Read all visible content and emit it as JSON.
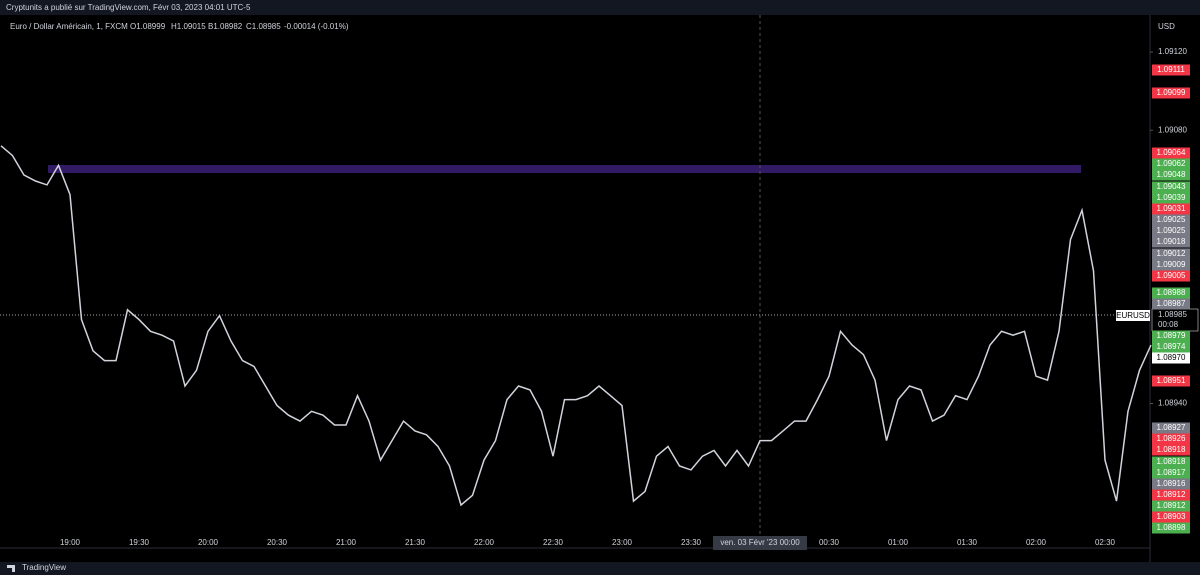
{
  "header": {
    "publisher": "Cryptunits a publié sur TradingView.com, Févr 03, 2023 04:01 UTC-5",
    "brand": "TradingView"
  },
  "chart_data": {
    "type": "line",
    "title": "Euro / Dollar Américain, 1, FXCM",
    "ohlc": [
      "O1.08999",
      "H1.09015",
      "B1.08982",
      "C1.08985",
      "-0.00014 (-0.01%)"
    ],
    "currency": "USD",
    "symbol": "EURUSD",
    "last_price": "1.08985",
    "countdown": "00:08",
    "crosshair_time": "ven. 03 Févr '23 00:00",
    "color": "#d1d4dc",
    "grid": false,
    "ylim": [
      1.08866,
      1.09139
    ],
    "yticks": [
      {
        "value": 1.0912,
        "label": "1.09120"
      },
      {
        "value": 1.0908,
        "label": "1.09080"
      },
      {
        "value": 1.0894,
        "label": "1.08940"
      }
    ],
    "categories": [
      null,
      null,
      null,
      null,
      null,
      null,
      "19:00",
      null,
      null,
      null,
      null,
      null,
      "19:30",
      null,
      null,
      null,
      null,
      null,
      "20:00",
      null,
      null,
      null,
      null,
      null,
      "20:30",
      null,
      null,
      null,
      null,
      null,
      "21:00",
      null,
      null,
      null,
      null,
      null,
      "21:30",
      null,
      null,
      null,
      null,
      null,
      "22:00",
      null,
      null,
      null,
      null,
      null,
      "22:30",
      null,
      null,
      null,
      null,
      null,
      "23:00",
      null,
      null,
      null,
      null,
      null,
      "23:30",
      null,
      null,
      null,
      null,
      null,
      null,
      null,
      null,
      null,
      null,
      null,
      "00:30",
      null,
      null,
      null,
      null,
      null,
      "01:00",
      null,
      null,
      null,
      null,
      null,
      "01:30",
      null,
      null,
      null,
      null,
      null,
      "02:00",
      null,
      null,
      null,
      null,
      null,
      "02:30",
      null,
      null,
      null,
      null
    ],
    "values": [
      1.09072,
      1.09067,
      1.09057,
      1.09054,
      1.09052,
      1.09062,
      1.09047,
      1.08983,
      1.08967,
      1.08962,
      1.08962,
      1.08988,
      1.08983,
      1.08977,
      1.08975,
      1.08972,
      1.08949,
      1.08957,
      1.08977,
      1.08985,
      1.08972,
      1.08962,
      1.08959,
      1.08949,
      1.08939,
      1.08934,
      1.08931,
      1.08936,
      1.08934,
      1.08929,
      1.08929,
      1.08944,
      1.08931,
      1.08911,
      1.08921,
      1.08931,
      1.08926,
      1.08924,
      1.08918,
      1.08908,
      1.08888,
      1.08893,
      1.08911,
      1.08921,
      1.08942,
      1.08949,
      1.08947,
      1.08936,
      1.08913,
      1.08942,
      1.08942,
      1.08944,
      1.08949,
      1.08944,
      1.08939,
      1.0889,
      1.08895,
      1.08913,
      1.08918,
      1.08908,
      1.08906,
      1.08913,
      1.08916,
      1.08908,
      1.08916,
      1.08908,
      1.08921,
      1.08921,
      1.08926,
      1.08931,
      1.08931,
      1.08942,
      1.08954,
      1.08977,
      1.0897,
      1.08965,
      1.08952,
      1.08921,
      1.08942,
      1.08949,
      1.08947,
      1.08931,
      1.08934,
      1.08944,
      1.08942,
      1.08954,
      1.0897,
      1.08977,
      1.08975,
      1.08977,
      1.08954,
      1.08952,
      1.08977,
      1.09024,
      1.09039,
      1.09008,
      1.08911,
      1.0889,
      1.08936,
      1.08957,
      1.0897
    ],
    "price_labels": [
      {
        "text": "1.09111",
        "color": "#f23645"
      },
      {
        "text": "1.09099",
        "color": "#f23645"
      },
      {
        "text": "1.09064",
        "color": "#f23645"
      },
      {
        "text": "1.09062",
        "color": "#4caf50"
      },
      {
        "text": "1.09048",
        "color": "#4caf50"
      },
      {
        "text": "1.09043",
        "color": "#4caf50"
      },
      {
        "text": "1.09039",
        "color": "#4caf50"
      },
      {
        "text": "1.09031",
        "color": "#f23645"
      },
      {
        "text": "1.09025",
        "color": "#787b86"
      },
      {
        "text": "1.09025",
        "color": "#787b86"
      },
      {
        "text": "1.09018",
        "color": "#787b86"
      },
      {
        "text": "1.09012",
        "color": "#787b86"
      },
      {
        "text": "1.09009",
        "color": "#787b86"
      },
      {
        "text": "1.09005",
        "color": "#f23645"
      },
      {
        "text": "1.08988",
        "color": "#4caf50"
      },
      {
        "text": "1.08987",
        "color": "#787b86"
      },
      {
        "text": "1.08979",
        "color": "#4caf50"
      },
      {
        "text": "1.08974",
        "color": "#4caf50"
      },
      {
        "text": "1.08970",
        "color": "#ffffff"
      },
      {
        "text": "1.08951",
        "color": "#f23645"
      },
      {
        "text": "1.08927",
        "color": "#787b86"
      },
      {
        "text": "1.08926",
        "color": "#f23645"
      },
      {
        "text": "1.08918",
        "color": "#f23645"
      },
      {
        "text": "1.08918",
        "color": "#4caf50"
      },
      {
        "text": "1.08917",
        "color": "#4caf50"
      },
      {
        "text": "1.08916",
        "color": "#787b86"
      },
      {
        "text": "1.08912",
        "color": "#f23645"
      },
      {
        "text": "1.08912",
        "color": "#4caf50"
      },
      {
        "text": "1.08903",
        "color": "#f23645"
      },
      {
        "text": "1.08898",
        "color": "#4caf50"
      }
    ]
  }
}
